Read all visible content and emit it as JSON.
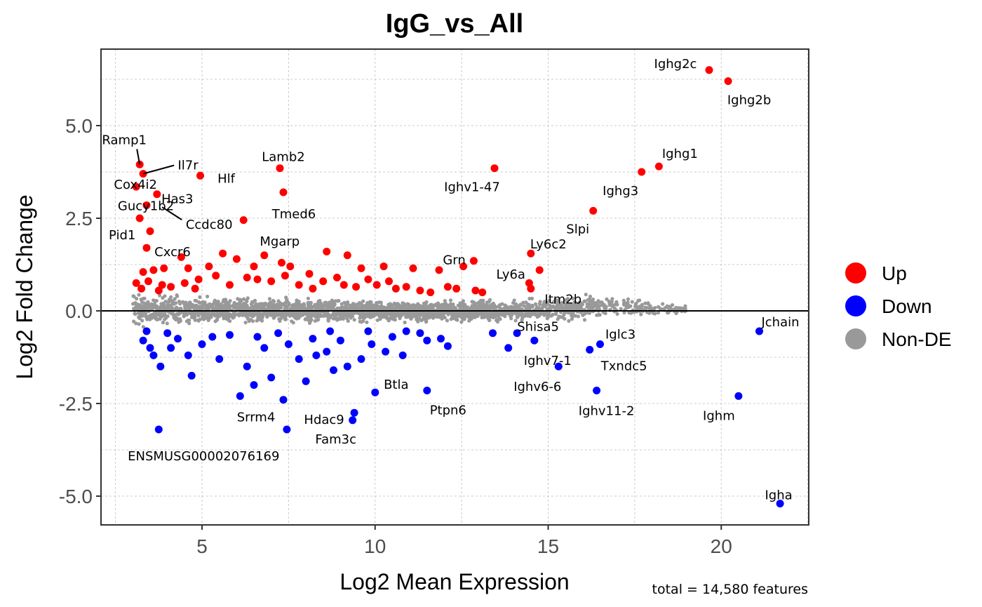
{
  "chart_data": {
    "type": "scatter",
    "title": "IgG_vs_All",
    "xlabel": "Log2 Mean Expression",
    "ylabel": "Log2 Fold Change",
    "caption": "total = 14,580 features",
    "xlim": [
      2.5,
      22.5
    ],
    "ylim": [
      -5.8,
      7.0
    ],
    "xticks": [
      5,
      10,
      15,
      20
    ],
    "yticks": [
      -5.0,
      -2.5,
      0.0,
      2.5,
      5.0
    ],
    "ytick_labels": [
      "-5.0",
      "-2.5",
      "0.0",
      "2.5",
      "5.0"
    ],
    "grid": true,
    "hline": 0,
    "legend_position": "right",
    "colors": {
      "Up": "#ff0000",
      "Down": "#0000ff",
      "Non-DE": "#999999"
    },
    "series": [
      {
        "name": "Up",
        "points": [
          [
            19.65,
            6.5
          ],
          [
            20.2,
            6.2
          ],
          [
            18.2,
            3.9
          ],
          [
            17.7,
            3.75
          ],
          [
            16.3,
            2.7
          ],
          [
            13.45,
            3.85
          ],
          [
            14.5,
            1.55
          ],
          [
            14.75,
            1.1
          ],
          [
            14.45,
            0.75
          ],
          [
            14.5,
            0.6
          ],
          [
            12.85,
            1.35
          ],
          [
            12.55,
            1.2
          ],
          [
            12.9,
            0.55
          ],
          [
            13.1,
            0.5
          ],
          [
            11.85,
            1.1
          ],
          [
            12.35,
            0.6
          ],
          [
            7.25,
            3.85
          ],
          [
            7.35,
            3.2
          ],
          [
            6.2,
            2.45
          ],
          [
            4.95,
            3.65
          ],
          [
            3.2,
            3.95
          ],
          [
            3.3,
            3.7
          ],
          [
            3.1,
            3.35
          ],
          [
            3.7,
            3.15
          ],
          [
            3.4,
            2.85
          ],
          [
            3.2,
            2.5
          ],
          [
            3.5,
            2.15
          ],
          [
            3.4,
            1.7
          ],
          [
            10.25,
            1.2
          ],
          [
            11.1,
            1.15
          ],
          [
            8.6,
            1.6
          ],
          [
            9.2,
            1.5
          ],
          [
            9.6,
            1.15
          ],
          [
            5.6,
            1.55
          ],
          [
            6.0,
            1.4
          ],
          [
            6.8,
            1.5
          ],
          [
            7.3,
            1.3
          ],
          [
            7.55,
            1.2
          ],
          [
            8.1,
            1.0
          ],
          [
            8.5,
            0.8
          ],
          [
            9.8,
            0.85
          ],
          [
            10.6,
            0.6
          ],
          [
            11.3,
            0.55
          ],
          [
            11.6,
            0.5
          ],
          [
            5.2,
            1.2
          ],
          [
            4.6,
            1.15
          ],
          [
            4.4,
            1.45
          ],
          [
            3.9,
            1.15
          ],
          [
            3.6,
            1.1
          ],
          [
            3.3,
            1.05
          ],
          [
            3.1,
            0.75
          ],
          [
            3.25,
            0.6
          ],
          [
            3.45,
            0.8
          ],
          [
            3.85,
            0.7
          ],
          [
            4.1,
            0.65
          ],
          [
            4.5,
            0.75
          ],
          [
            4.9,
            0.85
          ],
          [
            5.4,
            0.95
          ],
          [
            5.8,
            0.7
          ],
          [
            6.3,
            0.9
          ],
          [
            6.6,
            0.85
          ],
          [
            7.0,
            0.8
          ],
          [
            7.4,
            0.95
          ],
          [
            7.8,
            0.7
          ],
          [
            8.2,
            0.6
          ],
          [
            8.9,
            0.9
          ],
          [
            9.1,
            0.7
          ],
          [
            9.45,
            0.65
          ],
          [
            10.05,
            0.7
          ],
          [
            10.4,
            0.8
          ],
          [
            10.9,
            0.65
          ],
          [
            12.1,
            0.65
          ],
          [
            6.5,
            1.2
          ],
          [
            3.75,
            0.55
          ],
          [
            4.8,
            0.6
          ]
        ]
      },
      {
        "name": "Down",
        "points": [
          [
            21.7,
            -5.2
          ],
          [
            20.5,
            -2.3
          ],
          [
            21.1,
            -0.55
          ],
          [
            16.5,
            -0.9
          ],
          [
            16.2,
            -1.05
          ],
          [
            16.4,
            -2.15
          ],
          [
            15.3,
            -1.5
          ],
          [
            14.6,
            -0.8
          ],
          [
            14.1,
            -0.6
          ],
          [
            13.4,
            -0.6
          ],
          [
            13.85,
            -1.0
          ],
          [
            11.5,
            -2.15
          ],
          [
            10.0,
            -2.2
          ],
          [
            9.4,
            -2.75
          ],
          [
            9.35,
            -2.95
          ],
          [
            7.35,
            -2.4
          ],
          [
            7.45,
            -3.2
          ],
          [
            3.75,
            -3.2
          ],
          [
            8.8,
            -1.6
          ],
          [
            9.2,
            -1.5
          ],
          [
            9.6,
            -1.3
          ],
          [
            10.3,
            -1.1
          ],
          [
            10.8,
            -1.2
          ],
          [
            11.5,
            -0.8
          ],
          [
            11.9,
            -0.75
          ],
          [
            12.1,
            -0.95
          ],
          [
            6.1,
            -2.3
          ],
          [
            6.5,
            -2.0
          ],
          [
            7.0,
            -1.8
          ],
          [
            8.0,
            -1.9
          ],
          [
            4.7,
            -1.75
          ],
          [
            3.8,
            -1.5
          ],
          [
            3.6,
            -1.2
          ],
          [
            3.3,
            -0.8
          ],
          [
            3.5,
            -1.0
          ],
          [
            4.1,
            -1.0
          ],
          [
            4.6,
            -1.2
          ],
          [
            5.0,
            -0.9
          ],
          [
            5.5,
            -1.3
          ],
          [
            6.3,
            -1.5
          ],
          [
            6.8,
            -1.0
          ],
          [
            7.5,
            -0.9
          ],
          [
            8.2,
            -0.75
          ],
          [
            8.6,
            -1.1
          ],
          [
            9.0,
            -0.8
          ],
          [
            9.9,
            -0.9
          ],
          [
            10.5,
            -0.7
          ],
          [
            11.3,
            -0.6
          ],
          [
            7.8,
            -1.3
          ],
          [
            8.3,
            -1.2
          ],
          [
            5.8,
            -0.65
          ],
          [
            6.6,
            -0.7
          ],
          [
            7.2,
            -0.6
          ],
          [
            8.7,
            -0.55
          ],
          [
            9.8,
            -0.55
          ],
          [
            10.9,
            -0.55
          ],
          [
            5.3,
            -0.7
          ],
          [
            4.3,
            -0.75
          ],
          [
            4.0,
            -0.6
          ],
          [
            3.4,
            -0.55
          ]
        ]
      }
    ],
    "labels": [
      {
        "text": "Ighg2c",
        "x": 19.65,
        "y": 6.5
      },
      {
        "text": "Ighg2b",
        "x": 20.2,
        "y": 6.2
      },
      {
        "text": "Ighg1",
        "x": 18.2,
        "y": 3.9
      },
      {
        "text": "Ighg3",
        "x": 17.7,
        "y": 3.75
      },
      {
        "text": "Slpi",
        "x": 16.3,
        "y": 2.7
      },
      {
        "text": "Ighv1-47",
        "x": 13.45,
        "y": 3.85
      },
      {
        "text": "Ly6c2",
        "x": 14.5,
        "y": 1.55
      },
      {
        "text": "Ly6a",
        "x": 14.75,
        "y": 1.1
      },
      {
        "text": "Itm2b",
        "x": 14.5,
        "y": 0.6
      },
      {
        "text": "Grn",
        "x": 12.55,
        "y": 1.2
      },
      {
        "text": "Lamb2",
        "x": 7.25,
        "y": 3.85
      },
      {
        "text": "Tmed6",
        "x": 7.35,
        "y": 3.2
      },
      {
        "text": "Hlf",
        "x": 4.95,
        "y": 3.65
      },
      {
        "text": "Ramp1",
        "x": 3.2,
        "y": 3.95
      },
      {
        "text": "Il7r",
        "x": 3.3,
        "y": 3.7
      },
      {
        "text": "Cox4i2",
        "x": 3.1,
        "y": 3.35
      },
      {
        "text": "Has3",
        "x": 3.7,
        "y": 3.15
      },
      {
        "text": "Gucy1b2",
        "x": 3.4,
        "y": 2.85
      },
      {
        "text": "Ccdc80",
        "x": 3.85,
        "y": 2.8
      },
      {
        "text": "Pid1",
        "x": 3.2,
        "y": 2.5
      },
      {
        "text": "Cxcr6",
        "x": 3.4,
        "y": 1.7
      },
      {
        "text": "Mgarp",
        "x": 6.8,
        "y": 1.5
      },
      {
        "text": "Jchain",
        "x": 21.1,
        "y": -0.55
      },
      {
        "text": "Shisa5",
        "x": 14.1,
        "y": -0.6
      },
      {
        "text": "Iglc3",
        "x": 16.5,
        "y": -0.9
      },
      {
        "text": "Ighv7-1",
        "x": 14.6,
        "y": -0.8
      },
      {
        "text": "Txndc5",
        "x": 16.2,
        "y": -1.05
      },
      {
        "text": "Ighv6-6",
        "x": 15.3,
        "y": -1.5
      },
      {
        "text": "Ighv11-2",
        "x": 16.4,
        "y": -2.15
      },
      {
        "text": "Ighm",
        "x": 20.5,
        "y": -2.3
      },
      {
        "text": "Igha",
        "x": 21.7,
        "y": -5.2
      },
      {
        "text": "Btla",
        "x": 10.0,
        "y": -2.2
      },
      {
        "text": "Ptpn6",
        "x": 11.5,
        "y": -2.15
      },
      {
        "text": "Hdac9",
        "x": 9.4,
        "y": -2.75
      },
      {
        "text": "Fam3c",
        "x": 9.35,
        "y": -2.95
      },
      {
        "text": "Srrm4",
        "x": 7.35,
        "y": -2.4
      },
      {
        "text": "ENSMUSG00002076169",
        "x": 3.75,
        "y": -3.2
      }
    ],
    "non_de_cloud": {
      "x_range": [
        3.0,
        19.0
      ],
      "upper_envelope": [
        [
          3.0,
          0.6
        ],
        [
          5.0,
          0.45
        ],
        [
          10.0,
          0.35
        ],
        [
          14.0,
          0.35
        ],
        [
          16.5,
          0.5
        ],
        [
          19.0,
          0.15
        ]
      ],
      "lower_envelope": [
        [
          3.0,
          -0.5
        ],
        [
          5.0,
          -0.4
        ],
        [
          10.0,
          -0.35
        ],
        [
          14.0,
          -0.35
        ],
        [
          16.0,
          -0.3
        ],
        [
          19.0,
          -0.1
        ]
      ],
      "count": 14450
    }
  }
}
